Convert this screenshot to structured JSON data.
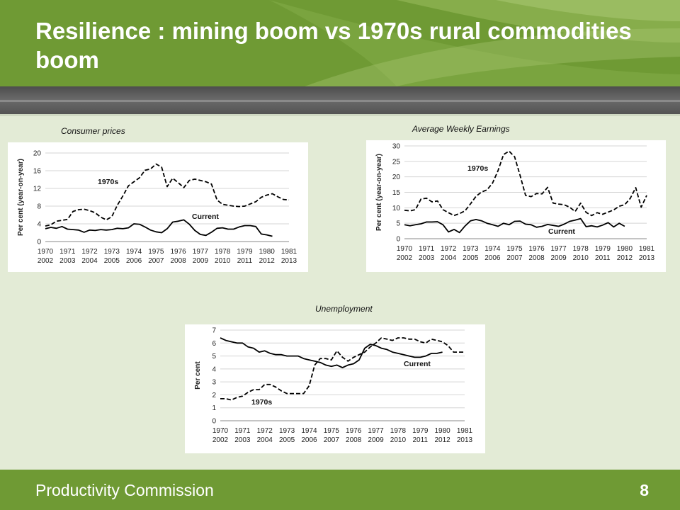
{
  "slide": {
    "title": "Resilience : mining boom vs 1970s rural commodities boom",
    "footer": {
      "organization": "Productivity Commission",
      "page_number": "8"
    },
    "colors": {
      "green": "#6f9a34",
      "background": "#e3ebd6",
      "grey_bar": "#5a5a5a"
    }
  },
  "chart_data": [
    {
      "type": "line",
      "caption": "Consumer prices",
      "ylabel": "Per cent (year-on-year)",
      "ylim": [
        0,
        20
      ],
      "yticks": [
        0,
        4,
        8,
        12,
        16,
        20
      ],
      "xlabels_top": [
        "1970",
        "1971",
        "1972",
        "1973",
        "1974",
        "1975",
        "1976",
        "1977",
        "1978",
        "1979",
        "1980",
        "1981"
      ],
      "xlabels_bottom": [
        "2002",
        "2003",
        "2004",
        "2005",
        "2006",
        "2007",
        "2008",
        "2009",
        "2010",
        "2011",
        "2012",
        "2013"
      ],
      "grid": true,
      "series": [
        {
          "name": "1970s",
          "style": "dashed",
          "x": [
            0,
            0.25,
            0.5,
            0.75,
            1,
            1.25,
            1.5,
            1.75,
            2,
            2.25,
            2.5,
            2.75,
            3,
            3.25,
            3.5,
            3.75,
            4,
            4.25,
            4.5,
            4.75,
            5,
            5.25,
            5.5,
            5.75,
            6,
            6.25,
            6.5,
            6.75,
            7,
            7.25,
            7.5,
            7.75,
            8,
            8.25,
            8.5,
            8.75,
            9,
            9.25,
            9.5,
            9.75,
            10,
            10.25,
            10.5,
            10.75,
            11
          ],
          "values": [
            3.5,
            3.8,
            4.6,
            4.8,
            5.0,
            6.8,
            7.2,
            7.3,
            7.0,
            6.5,
            5.5,
            4.9,
            5.6,
            8.2,
            10.3,
            12.6,
            13.5,
            14.4,
            16.1,
            16.4,
            17.5,
            16.8,
            12.4,
            14.3,
            13.3,
            12.2,
            13.8,
            14.1,
            13.8,
            13.5,
            13.0,
            9.4,
            8.4,
            8.2,
            8.0,
            7.9,
            8.0,
            8.5,
            9.0,
            10.0,
            10.5,
            10.8,
            10.1,
            9.5,
            9.4
          ]
        },
        {
          "name": "Current",
          "style": "solid",
          "x": [
            0,
            0.25,
            0.5,
            0.75,
            1,
            1.25,
            1.5,
            1.75,
            2,
            2.25,
            2.5,
            2.75,
            3,
            3.25,
            3.5,
            3.75,
            4,
            4.25,
            4.5,
            4.75,
            5,
            5.25,
            5.5,
            5.75,
            6,
            6.25,
            6.5,
            6.75,
            7,
            7.25,
            7.5,
            7.75,
            8,
            8.25,
            8.5,
            8.75,
            9,
            9.25,
            9.5,
            9.75,
            10,
            10.25
          ],
          "values": [
            2.9,
            3.2,
            3.0,
            3.4,
            2.8,
            2.7,
            2.6,
            2.1,
            2.6,
            2.5,
            2.7,
            2.6,
            2.7,
            3.0,
            2.9,
            3.1,
            4.0,
            3.9,
            3.3,
            2.6,
            2.2,
            2.0,
            2.9,
            4.4,
            4.6,
            4.9,
            3.9,
            2.5,
            1.6,
            1.4,
            2.1,
            3.0,
            3.1,
            2.8,
            2.8,
            3.3,
            3.6,
            3.6,
            3.4,
            1.7,
            1.5,
            1.2
          ]
        }
      ]
    },
    {
      "type": "line",
      "caption": "Average Weekly Earnings",
      "ylabel": "Per cent (year-on-year)",
      "ylim": [
        0,
        30
      ],
      "yticks": [
        0,
        5,
        10,
        15,
        20,
        25,
        30
      ],
      "xlabels_top": [
        "1970",
        "1971",
        "1972",
        "1973",
        "1974",
        "1975",
        "1976",
        "1977",
        "1978",
        "1979",
        "1980",
        "1981"
      ],
      "xlabels_bottom": [
        "2002",
        "2003",
        "2004",
        "2005",
        "2006",
        "2007",
        "2008",
        "2009",
        "2010",
        "2011",
        "2012",
        "2013"
      ],
      "grid": true,
      "series": [
        {
          "name": "1970s",
          "style": "dashed",
          "x": [
            0,
            0.25,
            0.5,
            0.75,
            1,
            1.25,
            1.5,
            1.75,
            2,
            2.25,
            2.5,
            2.75,
            3,
            3.25,
            3.5,
            3.75,
            4,
            4.25,
            4.5,
            4.75,
            5,
            5.25,
            5.5,
            5.75,
            6,
            6.25,
            6.5,
            6.75,
            7,
            7.25,
            7.5,
            7.75,
            8,
            8.25,
            8.5,
            8.75,
            9,
            9.25,
            9.5,
            9.75,
            10,
            10.25,
            10.5,
            10.75,
            11
          ],
          "values": [
            9.2,
            9.0,
            9.4,
            12.8,
            13.1,
            11.9,
            12.2,
            9.4,
            8.4,
            7.5,
            8.1,
            9.0,
            11.3,
            13.7,
            15.1,
            15.8,
            18.0,
            22.0,
            27.2,
            28.3,
            26.5,
            20.5,
            14.0,
            13.6,
            14.6,
            14.5,
            16.6,
            11.5,
            11.2,
            11.0,
            10.2,
            8.8,
            11.5,
            8.5,
            7.5,
            8.4,
            7.9,
            8.6,
            9.3,
            10.5,
            11.0,
            13.0,
            16.5,
            10.2,
            14.0
          ]
        },
        {
          "name": "Current",
          "style": "solid",
          "x": [
            0,
            0.25,
            0.5,
            0.75,
            1,
            1.25,
            1.5,
            1.75,
            2,
            2.25,
            2.5,
            2.75,
            3,
            3.25,
            3.5,
            3.75,
            4,
            4.25,
            4.5,
            4.75,
            5,
            5.25,
            5.5,
            5.75,
            6,
            6.25,
            6.5,
            6.75,
            7,
            7.25,
            7.5,
            7.75,
            8,
            8.25,
            8.5,
            8.75,
            9,
            9.25,
            9.5,
            9.75,
            10
          ],
          "values": [
            4.5,
            4.2,
            4.5,
            4.8,
            5.4,
            5.4,
            5.5,
            4.5,
            2.2,
            3.0,
            2.0,
            4.1,
            5.8,
            6.2,
            5.8,
            5.0,
            4.5,
            4.0,
            5.0,
            4.5,
            5.6,
            5.7,
            4.7,
            4.5,
            3.7,
            4.0,
            4.6,
            4.3,
            4.0,
            4.7,
            5.6,
            6.0,
            6.5,
            3.9,
            4.2,
            3.8,
            4.4,
            5.2,
            3.8,
            5.0,
            4.0
          ]
        }
      ]
    },
    {
      "type": "line",
      "caption": "Unemployment",
      "ylabel": "Per cent",
      "ylim": [
        0,
        7
      ],
      "yticks": [
        0,
        1,
        2,
        3,
        4,
        5,
        6,
        7
      ],
      "xlabels_top": [
        "1970",
        "1971",
        "1972",
        "1973",
        "1974",
        "1975",
        "1976",
        "1977",
        "1978",
        "1979",
        "1980",
        "1981"
      ],
      "xlabels_bottom": [
        "2002",
        "2003",
        "2004",
        "2005",
        "2006",
        "2007",
        "2008",
        "2009",
        "2010",
        "2011",
        "2012",
        "2013"
      ],
      "grid": true,
      "series": [
        {
          "name": "1970s",
          "style": "dashed",
          "x": [
            0,
            0.25,
            0.5,
            0.75,
            1,
            1.25,
            1.5,
            1.75,
            2,
            2.25,
            2.5,
            2.75,
            3,
            3.25,
            3.5,
            3.75,
            4,
            4.25,
            4.5,
            4.75,
            5,
            5.25,
            5.5,
            5.75,
            6,
            6.25,
            6.5,
            6.75,
            7,
            7.25,
            7.5,
            7.75,
            8,
            8.25,
            8.5,
            8.75,
            9,
            9.25,
            9.5,
            9.75,
            10,
            10.25,
            10.5,
            10.75,
            11
          ],
          "values": [
            1.7,
            1.7,
            1.6,
            1.8,
            1.9,
            2.2,
            2.4,
            2.4,
            2.8,
            2.8,
            2.6,
            2.3,
            2.1,
            2.1,
            2.1,
            2.1,
            2.7,
            4.3,
            4.8,
            4.8,
            4.7,
            5.4,
            4.9,
            4.6,
            4.9,
            5.1,
            5.3,
            5.7,
            6.0,
            6.4,
            6.3,
            6.2,
            6.4,
            6.4,
            6.3,
            6.3,
            6.1,
            6.0,
            6.3,
            6.2,
            6.1,
            5.8,
            5.3,
            5.3,
            5.3
          ]
        },
        {
          "name": "Current",
          "style": "solid",
          "x": [
            0,
            0.25,
            0.5,
            0.75,
            1,
            1.25,
            1.5,
            1.75,
            2,
            2.25,
            2.5,
            2.75,
            3,
            3.25,
            3.5,
            3.75,
            4,
            4.25,
            4.5,
            4.75,
            5,
            5.25,
            5.5,
            5.75,
            6,
            6.25,
            6.5,
            6.75,
            7,
            7.25,
            7.5,
            7.75,
            8,
            8.25,
            8.5,
            8.75,
            9,
            9.25,
            9.5,
            9.75,
            10
          ],
          "values": [
            6.4,
            6.2,
            6.1,
            6.0,
            6.0,
            5.7,
            5.6,
            5.3,
            5.4,
            5.2,
            5.1,
            5.1,
            5.0,
            5.0,
            5.0,
            4.8,
            4.7,
            4.6,
            4.5,
            4.3,
            4.2,
            4.3,
            4.1,
            4.3,
            4.4,
            4.7,
            5.6,
            5.9,
            5.8,
            5.6,
            5.5,
            5.3,
            5.2,
            5.1,
            5.0,
            4.9,
            4.9,
            5.0,
            5.2,
            5.2,
            5.3
          ]
        }
      ]
    }
  ]
}
